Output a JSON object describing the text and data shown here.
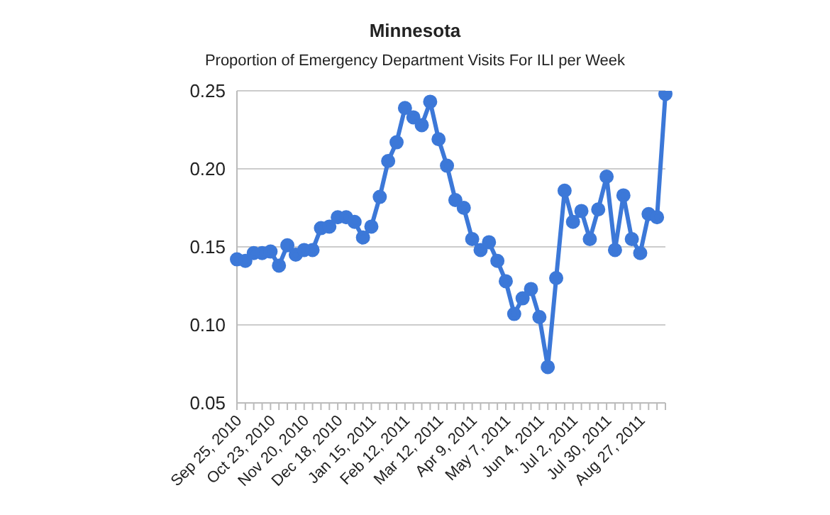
{
  "chart_data": {
    "type": "line",
    "title": "Minnesota",
    "subtitle": "Proportion of Emergency Department Visits For ILI per Week",
    "categories": [
      "Sep 25, 2010",
      null,
      null,
      null,
      "Oct 23, 2010",
      null,
      null,
      null,
      "Nov 20, 2010",
      null,
      null,
      null,
      "Dec 18, 2010",
      null,
      null,
      null,
      "Jan 15, 2011",
      null,
      null,
      null,
      "Feb 12, 2011",
      null,
      null,
      null,
      "Mar 12, 2011",
      null,
      null,
      null,
      "Apr 9, 2011",
      null,
      null,
      null,
      "May 7, 2011",
      null,
      null,
      null,
      "Jun 4, 2011",
      null,
      null,
      null,
      "Jul 2, 2011",
      null,
      null,
      null,
      "Jul 30, 2011",
      null,
      null,
      null,
      "Aug 27, 2011",
      null,
      null,
      null
    ],
    "series": [
      {
        "color": "#3c78d8",
        "values": [
          0.142,
          0.141,
          0.146,
          0.146,
          0.147,
          0.138,
          0.151,
          0.145,
          0.148,
          0.148,
          0.162,
          0.163,
          0.169,
          0.169,
          0.166,
          0.156,
          0.163,
          0.182,
          0.205,
          0.217,
          0.239,
          0.233,
          0.228,
          0.243,
          0.219,
          0.202,
          0.18,
          0.175,
          0.155,
          0.148,
          0.153,
          0.141,
          0.128,
          0.107,
          0.117,
          0.123,
          0.105,
          0.073,
          0.13,
          0.186,
          0.166,
          0.173,
          0.155,
          0.174,
          0.195,
          0.148,
          0.183,
          0.155,
          0.146,
          0.171,
          0.169,
          0.248
        ]
      }
    ],
    "ylim": [
      0.05,
      0.25
    ],
    "yticks": [
      {
        "value": 0.05,
        "label": "0.05"
      },
      {
        "value": 0.1,
        "label": "0.10"
      },
      {
        "value": 0.15,
        "label": "0.15"
      },
      {
        "value": 0.2,
        "label": "0.20"
      },
      {
        "value": 0.25,
        "label": "0.25"
      }
    ],
    "grid": "y",
    "marker": "circle",
    "line_style": "solid"
  }
}
